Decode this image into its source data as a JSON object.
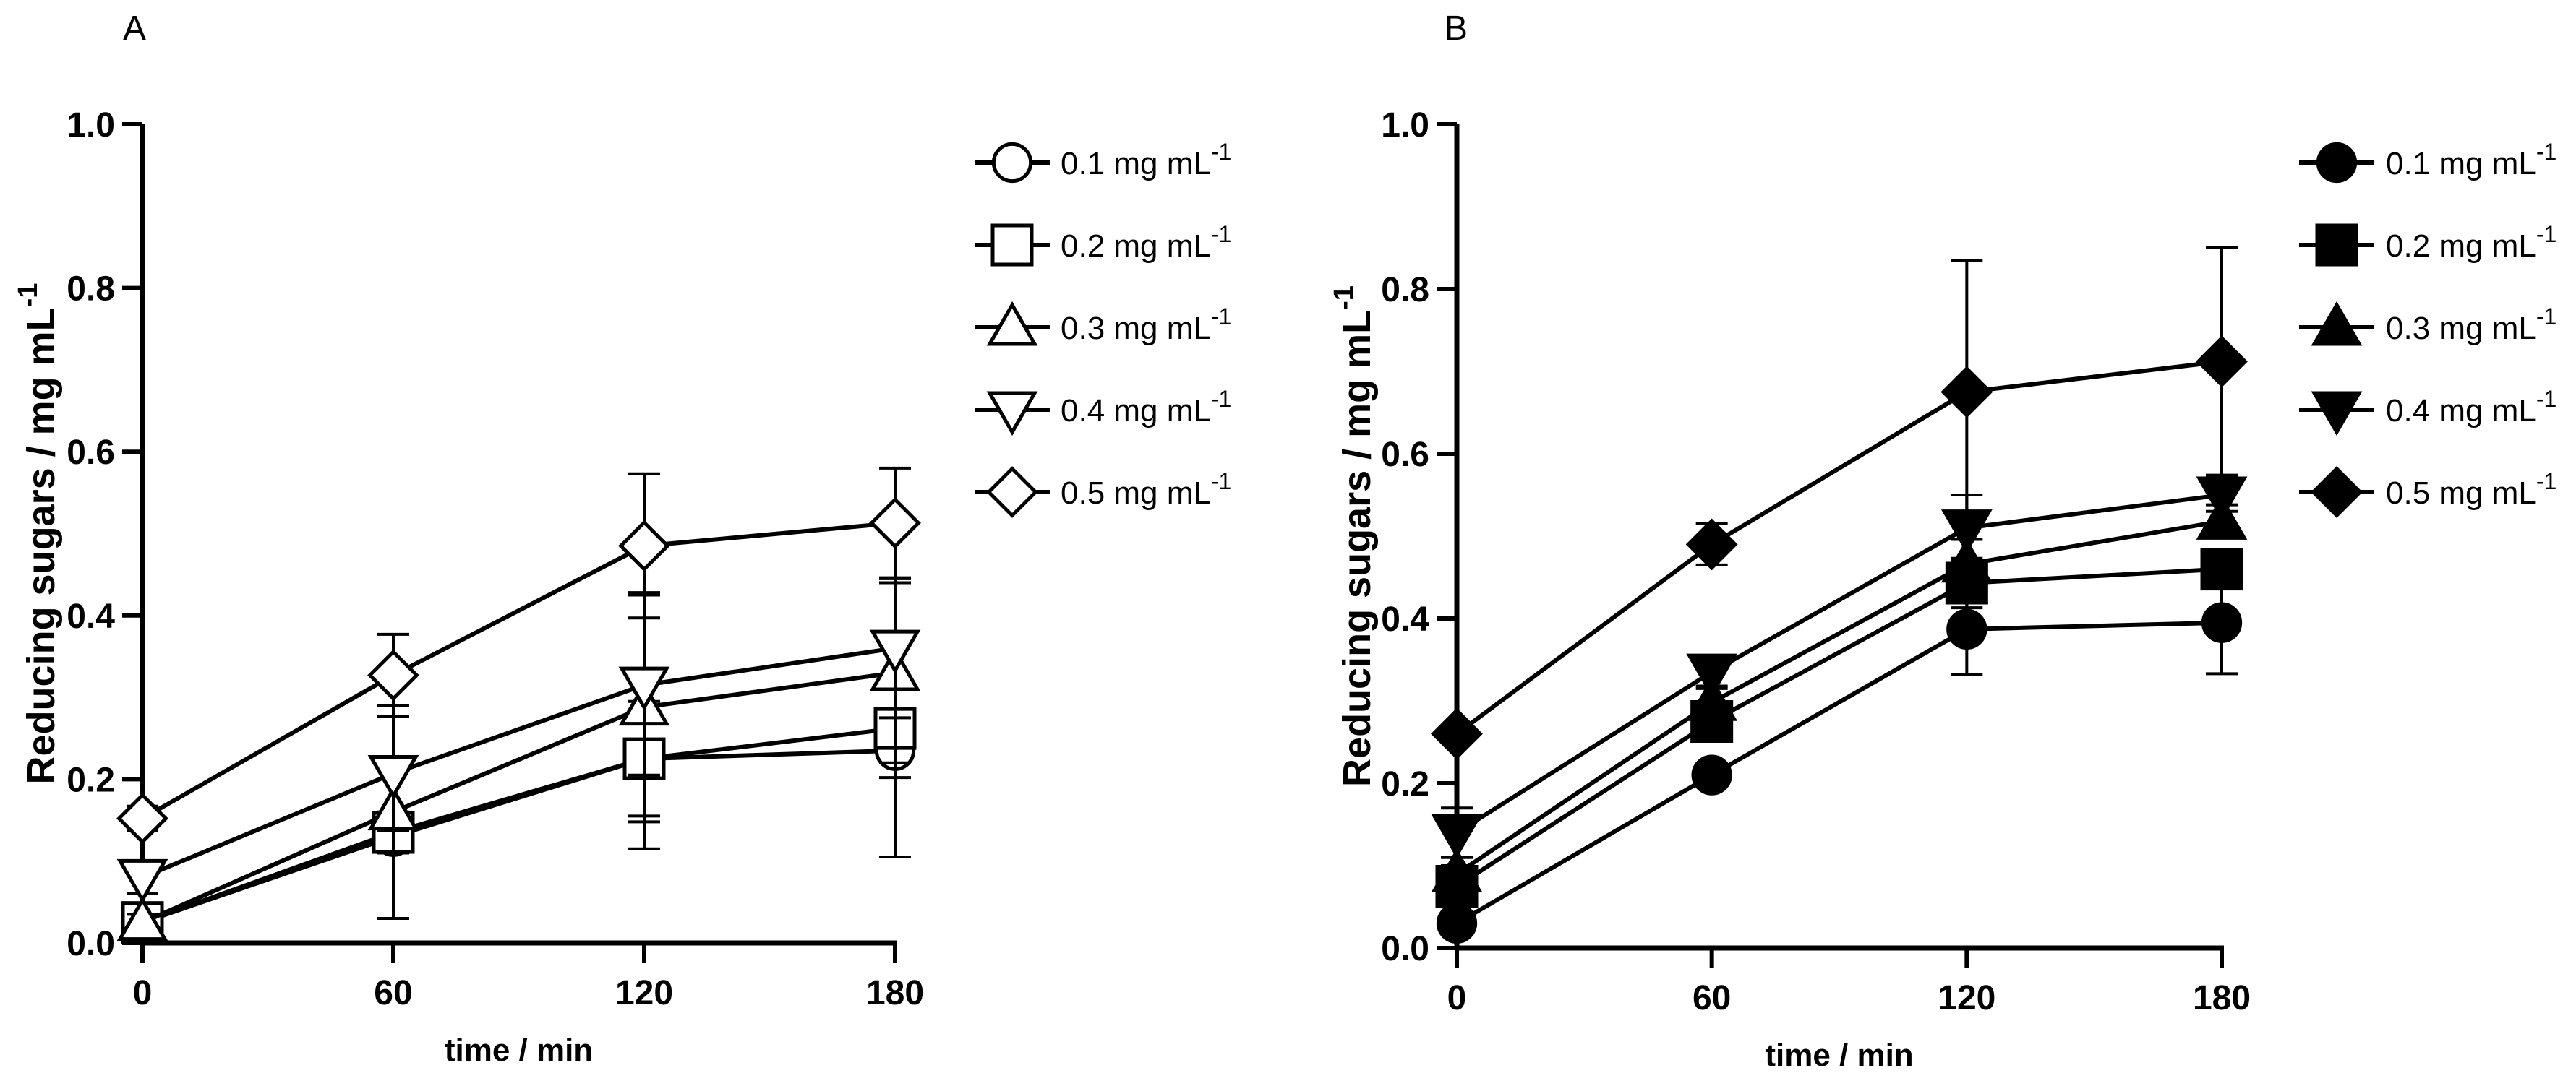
{
  "chart_data": [
    {
      "panel_label": "A",
      "type": "line",
      "marker_fill": "open",
      "xlabel": "time / min",
      "ylabel": "Reducing sugars / mg mL",
      "ylabel_sup": "-1",
      "xlim": [
        0,
        180
      ],
      "ylim": [
        0,
        1.0
      ],
      "x_ticks": [
        0,
        60,
        120,
        180
      ],
      "x_tick_labels": [
        "0",
        "60",
        "120",
        "180"
      ],
      "y_ticks": [
        0,
        0.2,
        0.4,
        0.6,
        0.8,
        1.0
      ],
      "y_tick_labels": [
        "0.0",
        "0.2",
        "0.4",
        "0.6",
        "0.8",
        "1.0"
      ],
      "legend_position": "top-right",
      "series": [
        {
          "name": "0.1 mg mL",
          "name_sup": "-1",
          "marker": "circle",
          "x": [
            0,
            60,
            120,
            180
          ],
          "values": [
            0.025,
            0.13,
            0.225,
            0.235
          ],
          "errors": [
            0.01,
            0.02,
            0.11,
            0.13
          ]
        },
        {
          "name": "0.2 mg mL",
          "name_sup": "-1",
          "marker": "square",
          "x": [
            0,
            60,
            120,
            180
          ],
          "values": [
            0.025,
            0.135,
            0.225,
            0.262
          ],
          "errors": [
            0.01,
            0.025,
            0.07,
            0.06
          ]
        },
        {
          "name": "0.3 mg mL",
          "name_sup": "-1",
          "marker": "triangle-up",
          "x": [
            0,
            60,
            120,
            180
          ],
          "values": [
            0.025,
            0.16,
            0.288,
            0.33
          ],
          "errors": [
            0.01,
            0.13,
            0.14,
            0.11
          ]
        },
        {
          "name": "0.4 mg mL",
          "name_sup": "-1",
          "marker": "triangle-down",
          "x": [
            0,
            60,
            120,
            180
          ],
          "values": [
            0.08,
            0.207,
            0.315,
            0.36
          ],
          "errors": [
            0.02,
            0.07,
            0.11,
            0.085
          ]
        },
        {
          "name": "0.5 mg mL",
          "name_sup": "-1",
          "marker": "diamond",
          "x": [
            0,
            60,
            120,
            180
          ],
          "values": [
            0.152,
            0.327,
            0.485,
            0.513
          ],
          "errors": [
            0.015,
            0.05,
            0.088,
            0.067
          ]
        }
      ]
    },
    {
      "panel_label": "B",
      "type": "line",
      "marker_fill": "filled",
      "xlabel": "time / min",
      "ylabel": "Reducing sugars / mg mL",
      "ylabel_sup": "-1",
      "xlim": [
        0,
        180
      ],
      "ylim": [
        0,
        1.0
      ],
      "x_ticks": [
        0,
        60,
        120,
        180
      ],
      "x_tick_labels": [
        "0",
        "60",
        "120",
        "180"
      ],
      "y_ticks": [
        0,
        0.2,
        0.4,
        0.6,
        0.8,
        1.0
      ],
      "y_tick_labels": [
        "0.0",
        "0.2",
        "0.4",
        "0.6",
        "0.8",
        "1.0"
      ],
      "legend_position": "top-right",
      "series": [
        {
          "name": "0.1 mg mL",
          "name_sup": "-1",
          "marker": "circle",
          "x": [
            0,
            60,
            120,
            180
          ],
          "values": [
            0.03,
            0.21,
            0.387,
            0.395
          ],
          "errors": [
            0.01,
            0.01,
            0.055,
            0.062
          ]
        },
        {
          "name": "0.2 mg mL",
          "name_sup": "-1",
          "marker": "square",
          "x": [
            0,
            60,
            120,
            180
          ],
          "values": [
            0.075,
            0.275,
            0.443,
            0.46
          ],
          "errors": [
            0.025,
            0.02,
            0.03,
            0.02
          ]
        },
        {
          "name": "0.3 mg mL",
          "name_sup": "-1",
          "marker": "triangle-up",
          "x": [
            0,
            60,
            120,
            180
          ],
          "values": [
            0.09,
            0.298,
            0.466,
            0.518
          ],
          "errors": [
            0.02,
            0.02,
            0.03,
            0.02
          ]
        },
        {
          "name": "0.4 mg mL",
          "name_sup": "-1",
          "marker": "triangle-down",
          "x": [
            0,
            60,
            120,
            180
          ],
          "values": [
            0.14,
            0.335,
            0.51,
            0.55
          ],
          "errors": [
            0.03,
            0.02,
            0.04,
            0.02
          ]
        },
        {
          "name": "0.5 mg mL",
          "name_sup": "-1",
          "marker": "diamond",
          "x": [
            0,
            60,
            120,
            180
          ],
          "values": [
            0.26,
            0.49,
            0.675,
            0.712
          ],
          "errors": [
            0.01,
            0.025,
            0.16,
            0.138
          ]
        }
      ]
    }
  ]
}
